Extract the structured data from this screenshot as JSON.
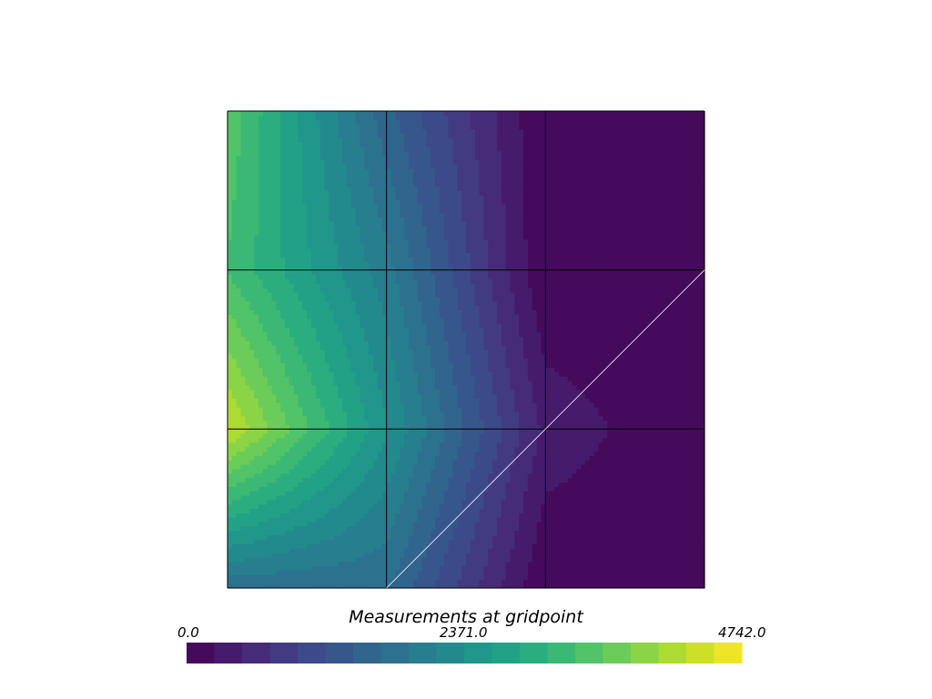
{
  "chart_data": {
    "type": "heatmap",
    "title": "Measurements at gridpoint",
    "colormap": "viridis",
    "clim": [
      0.0,
      4742.0
    ],
    "colorbar_ticks": [
      "0.0",
      "2371.0",
      "4742.0"
    ],
    "grid_x": [
      0,
      1,
      2,
      3
    ],
    "grid_y": [
      0,
      1,
      2,
      3
    ],
    "point_values": [
      [
        1700,
        1700,
        0,
        0
      ],
      [
        4300,
        2400,
        400,
        0
      ],
      [
        3300,
        2000,
        0,
        0
      ],
      [
        3500,
        1500,
        0,
        0
      ]
    ],
    "diagonal_edges": [
      [
        [
          1,
          0
        ],
        [
          3,
          2
        ]
      ]
    ],
    "num_bands": 20
  }
}
